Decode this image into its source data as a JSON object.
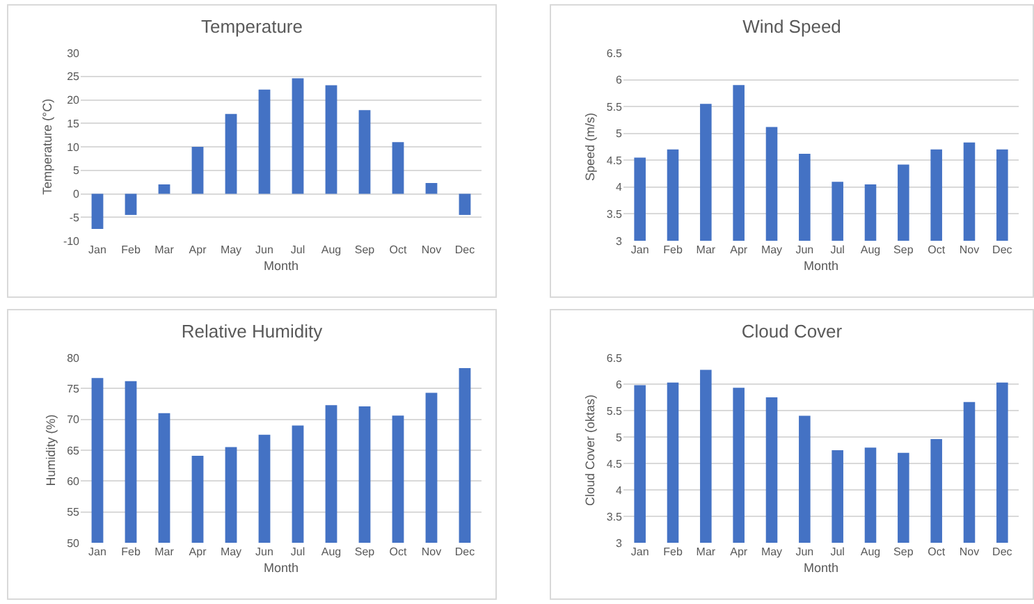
{
  "chart_data": [
    {
      "type": "bar",
      "title": "Temperature",
      "xlabel": "Month",
      "ylabel": "Temperature (°C)",
      "categories": [
        "Jan",
        "Feb",
        "Mar",
        "Apr",
        "May",
        "Jun",
        "Jul",
        "Aug",
        "Sep",
        "Oct",
        "Nov",
        "Dec"
      ],
      "series": [
        {
          "color": "#4472c4",
          "values": [
            -7.5,
            -4.5,
            2,
            10,
            17,
            22.2,
            24.6,
            23.1,
            17.8,
            11,
            2.3,
            -4.5
          ]
        }
      ],
      "ylim": [
        -10,
        30
      ],
      "yticks": [
        -10,
        -5,
        0,
        5,
        10,
        15,
        20,
        25,
        30
      ],
      "grid": "y"
    },
    {
      "type": "bar",
      "title": "Wind Speed",
      "xlabel": "Month",
      "ylabel": "Speed (m/s)",
      "categories": [
        "Jan",
        "Feb",
        "Mar",
        "Apr",
        "May",
        "Jun",
        "Jul",
        "Aug",
        "Sep",
        "Oct",
        "Nov",
        "Dec"
      ],
      "series": [
        {
          "color": "#4472c4",
          "values": [
            4.55,
            4.7,
            5.55,
            5.9,
            5.12,
            4.62,
            4.1,
            4.05,
            4.42,
            4.7,
            4.83,
            4.7
          ]
        }
      ],
      "ylim": [
        3,
        6.5
      ],
      "yticks": [
        3,
        3.5,
        4,
        4.5,
        5,
        5.5,
        6,
        6.5
      ],
      "grid": "y"
    },
    {
      "type": "bar",
      "title": "Relative Humidity",
      "xlabel": "Month",
      "ylabel": "Humidity (%)",
      "categories": [
        "Jan",
        "Feb",
        "Mar",
        "Apr",
        "May",
        "Jun",
        "Jul",
        "Aug",
        "Sep",
        "Oct",
        "Nov",
        "Dec"
      ],
      "series": [
        {
          "color": "#4472c4",
          "values": [
            76.7,
            76.2,
            71,
            64.1,
            65.5,
            67.5,
            69,
            72.3,
            72.1,
            70.6,
            74.3,
            78.3
          ]
        }
      ],
      "ylim": [
        50,
        80
      ],
      "yticks": [
        50,
        55,
        60,
        65,
        70,
        75,
        80
      ],
      "grid": "y"
    },
    {
      "type": "bar",
      "title": "Cloud Cover",
      "xlabel": "Month",
      "ylabel": "Cloud Cover (oktas)",
      "categories": [
        "Jan",
        "Feb",
        "Mar",
        "Apr",
        "May",
        "Jun",
        "Jul",
        "Aug",
        "Sep",
        "Oct",
        "Nov",
        "Dec"
      ],
      "series": [
        {
          "color": "#4472c4",
          "values": [
            5.98,
            6.03,
            6.27,
            5.93,
            5.75,
            5.4,
            4.75,
            4.8,
            4.7,
            4.96,
            5.66,
            6.03
          ]
        }
      ],
      "ylim": [
        3,
        6.5
      ],
      "yticks": [
        3,
        3.5,
        4,
        4.5,
        5,
        5.5,
        6,
        6.5
      ],
      "grid": "y"
    }
  ]
}
